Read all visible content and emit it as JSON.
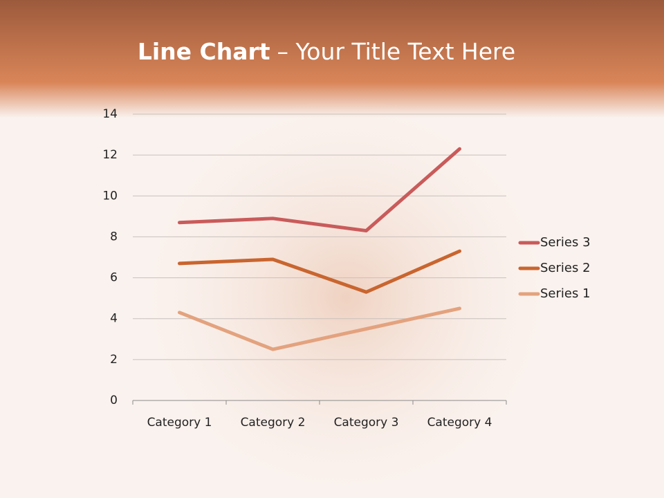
{
  "chart_data": {
    "type": "line",
    "stacked": true,
    "title": {
      "bold": "Line Chart",
      "rest": "– Your Title Text Here"
    },
    "categories": [
      "Category 1",
      "Category 2",
      "Category 3",
      "Category 4"
    ],
    "series": [
      {
        "name": "Series 1",
        "color": "#e3a27e",
        "values": [
          4.3,
          2.5,
          3.5,
          4.5
        ]
      },
      {
        "name": "Series 2",
        "color": "#c9652f",
        "values": [
          2.4,
          4.4,
          1.8,
          2.8
        ]
      },
      {
        "name": "Series 3",
        "color": "#c95b5b",
        "values": [
          2,
          2,
          3,
          5
        ]
      }
    ],
    "ylim": [
      0,
      14
    ],
    "yticks": [
      0,
      2,
      4,
      6,
      8,
      10,
      12,
      14
    ],
    "grid": true,
    "legend": "right"
  }
}
